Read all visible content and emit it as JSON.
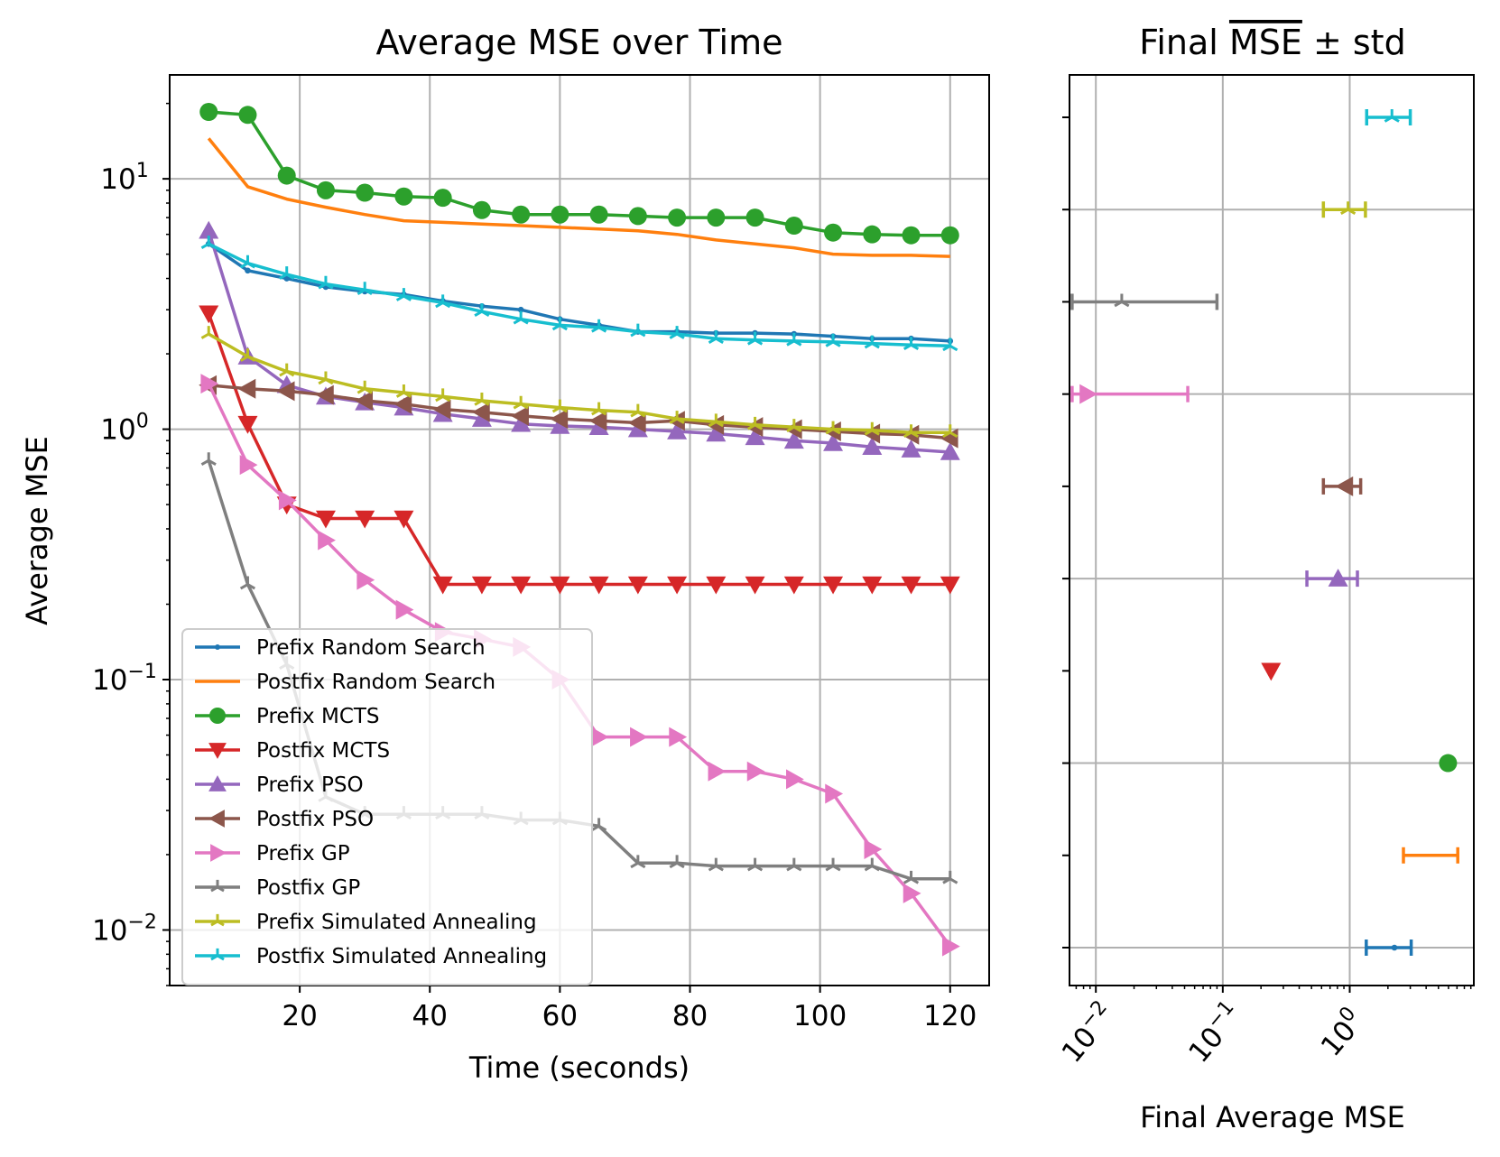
{
  "chart_data": [
    {
      "type": "line",
      "title": "Average MSE over Time",
      "xlabel": "Time (seconds)",
      "ylabel": "Average MSE",
      "yscale": "log",
      "xlim": [
        0,
        126
      ],
      "ylim": [
        0.006,
        26
      ],
      "xticks": [
        20,
        40,
        60,
        80,
        100,
        120
      ],
      "xtick_labels": [
        "20",
        "40",
        "60",
        "80",
        "100",
        "120"
      ],
      "yticks": [
        0.01,
        0.1,
        1,
        10
      ],
      "ytick_labels": [
        {
          "base": "10",
          "exp": "−2"
        },
        {
          "base": "10",
          "exp": "−1"
        },
        {
          "base": "10",
          "exp": "0"
        },
        {
          "base": "10",
          "exp": "1"
        }
      ],
      "grid": true,
      "legend_position": "lower-left",
      "x": [
        6,
        12,
        18,
        24,
        30,
        36,
        42,
        48,
        54,
        60,
        66,
        72,
        78,
        84,
        90,
        96,
        102,
        108,
        114,
        120
      ],
      "series": [
        {
          "name": "Prefix Random Search",
          "color": "#1f77b4",
          "marker": "point",
          "values": [
            5.5,
            4.3,
            4.0,
            3.7,
            3.55,
            3.45,
            3.25,
            3.1,
            3.0,
            2.75,
            2.6,
            2.45,
            2.45,
            2.42,
            2.42,
            2.4,
            2.35,
            2.3,
            2.3,
            2.25
          ]
        },
        {
          "name": "Postfix Random Search",
          "color": "#ff7f0e",
          "marker": "none",
          "values": [
            14.5,
            9.3,
            8.3,
            7.7,
            7.2,
            6.8,
            6.7,
            6.6,
            6.5,
            6.4,
            6.3,
            6.2,
            6.0,
            5.7,
            5.5,
            5.3,
            5.0,
            4.95,
            4.95,
            4.9
          ]
        },
        {
          "name": "Prefix MCTS",
          "color": "#2ca02c",
          "marker": "circle",
          "values": [
            18.5,
            18.0,
            10.3,
            9.0,
            8.8,
            8.5,
            8.4,
            7.5,
            7.2,
            7.2,
            7.2,
            7.1,
            7.0,
            7.0,
            7.0,
            6.5,
            6.1,
            6.0,
            5.95,
            5.95
          ]
        },
        {
          "name": "Postfix MCTS",
          "color": "#d62728",
          "marker": "triangle_down",
          "values": [
            2.9,
            1.05,
            0.5,
            0.44,
            0.44,
            0.44,
            0.24,
            0.24,
            0.24,
            0.24,
            0.24,
            0.24,
            0.24,
            0.24,
            0.24,
            0.24,
            0.24,
            0.24,
            0.24,
            0.24
          ]
        },
        {
          "name": "Prefix PSO",
          "color": "#9467bd",
          "marker": "triangle_up",
          "values": [
            6.2,
            1.95,
            1.5,
            1.35,
            1.28,
            1.22,
            1.15,
            1.1,
            1.05,
            1.03,
            1.02,
            1.0,
            0.98,
            0.96,
            0.93,
            0.9,
            0.88,
            0.85,
            0.83,
            0.81
          ]
        },
        {
          "name": "Postfix PSO",
          "color": "#8c564b",
          "marker": "triangle_left",
          "values": [
            1.5,
            1.45,
            1.42,
            1.37,
            1.3,
            1.26,
            1.2,
            1.17,
            1.13,
            1.1,
            1.08,
            1.06,
            1.08,
            1.04,
            1.02,
            1.0,
            0.98,
            0.96,
            0.95,
            0.92
          ]
        },
        {
          "name": "Prefix GP",
          "color": "#e377c2",
          "marker": "triangle_right",
          "values": [
            1.52,
            0.72,
            0.52,
            0.36,
            0.25,
            0.19,
            0.155,
            0.145,
            0.135,
            0.1,
            0.059,
            0.059,
            0.059,
            0.043,
            0.043,
            0.04,
            0.035,
            0.021,
            0.014,
            0.0086
          ]
        },
        {
          "name": "Postfix GP",
          "color": "#7f7f7f",
          "marker": "tri",
          "values": [
            0.75,
            0.24,
            0.115,
            0.034,
            0.029,
            0.029,
            0.029,
            0.029,
            0.0275,
            0.0275,
            0.026,
            0.0185,
            0.0185,
            0.018,
            0.018,
            0.018,
            0.018,
            0.018,
            0.016,
            0.016
          ]
        },
        {
          "name": "Prefix Simulated Annealing",
          "color": "#bcbd22",
          "marker": "tri",
          "values": [
            2.4,
            1.95,
            1.7,
            1.58,
            1.45,
            1.4,
            1.35,
            1.3,
            1.26,
            1.22,
            1.19,
            1.17,
            1.1,
            1.07,
            1.04,
            1.02,
            1.0,
            0.99,
            0.97,
            0.97
          ]
        },
        {
          "name": "Postfix Simulated Annealing",
          "color": "#17becf",
          "marker": "tri",
          "values": [
            5.5,
            4.6,
            4.15,
            3.8,
            3.6,
            3.4,
            3.2,
            2.95,
            2.75,
            2.6,
            2.55,
            2.45,
            2.4,
            2.3,
            2.27,
            2.25,
            2.23,
            2.2,
            2.17,
            2.15
          ]
        }
      ]
    },
    {
      "type": "errorbar",
      "title_prefix": "Final ",
      "title_overlined": "MSE",
      "title_suffix": " ± std",
      "xlabel": "Final Average MSE",
      "xscale": "log",
      "xlim": [
        0.0062,
        9.5
      ],
      "xticks": [
        0.01,
        0.1,
        1
      ],
      "xtick_labels": [
        {
          "base": "10",
          "exp": "−2"
        },
        {
          "base": "10",
          "exp": "−1"
        },
        {
          "base": "10",
          "exp": "0"
        }
      ],
      "grid": true,
      "points": [
        {
          "name": "Prefix Random Search",
          "color": "#1f77b4",
          "marker": "point",
          "mean": 2.25,
          "low": 1.35,
          "high": 3.05
        },
        {
          "name": "Postfix Random Search",
          "color": "#ff7f0e",
          "marker": "none",
          "mean": 4.9,
          "low": 2.65,
          "high": 7.1
        },
        {
          "name": "Prefix MCTS",
          "color": "#2ca02c",
          "marker": "circle",
          "mean": 5.95,
          "low": 5.95,
          "high": 5.95
        },
        {
          "name": "Postfix MCTS",
          "color": "#d62728",
          "marker": "triangle_down",
          "mean": 0.24,
          "low": 0.24,
          "high": 0.24
        },
        {
          "name": "Prefix PSO",
          "color": "#9467bd",
          "marker": "triangle_up",
          "mean": 0.81,
          "low": 0.46,
          "high": 1.15
        },
        {
          "name": "Postfix PSO",
          "color": "#8c564b",
          "marker": "triangle_left",
          "mean": 0.92,
          "low": 0.62,
          "high": 1.22
        },
        {
          "name": "Prefix GP",
          "color": "#e377c2",
          "marker": "triangle_right",
          "mean": 0.0086,
          "low": 0.0065,
          "high": 0.053
        },
        {
          "name": "Postfix GP",
          "color": "#7f7f7f",
          "marker": "tri",
          "mean": 0.016,
          "low": 0.0065,
          "high": 0.09
        },
        {
          "name": "Prefix Simulated Annealing",
          "color": "#bcbd22",
          "marker": "tri",
          "mean": 0.97,
          "low": 0.62,
          "high": 1.33
        },
        {
          "name": "Postfix Simulated Annealing",
          "color": "#17becf",
          "marker": "tri",
          "mean": 2.15,
          "low": 1.36,
          "high": 3.0
        }
      ]
    }
  ]
}
